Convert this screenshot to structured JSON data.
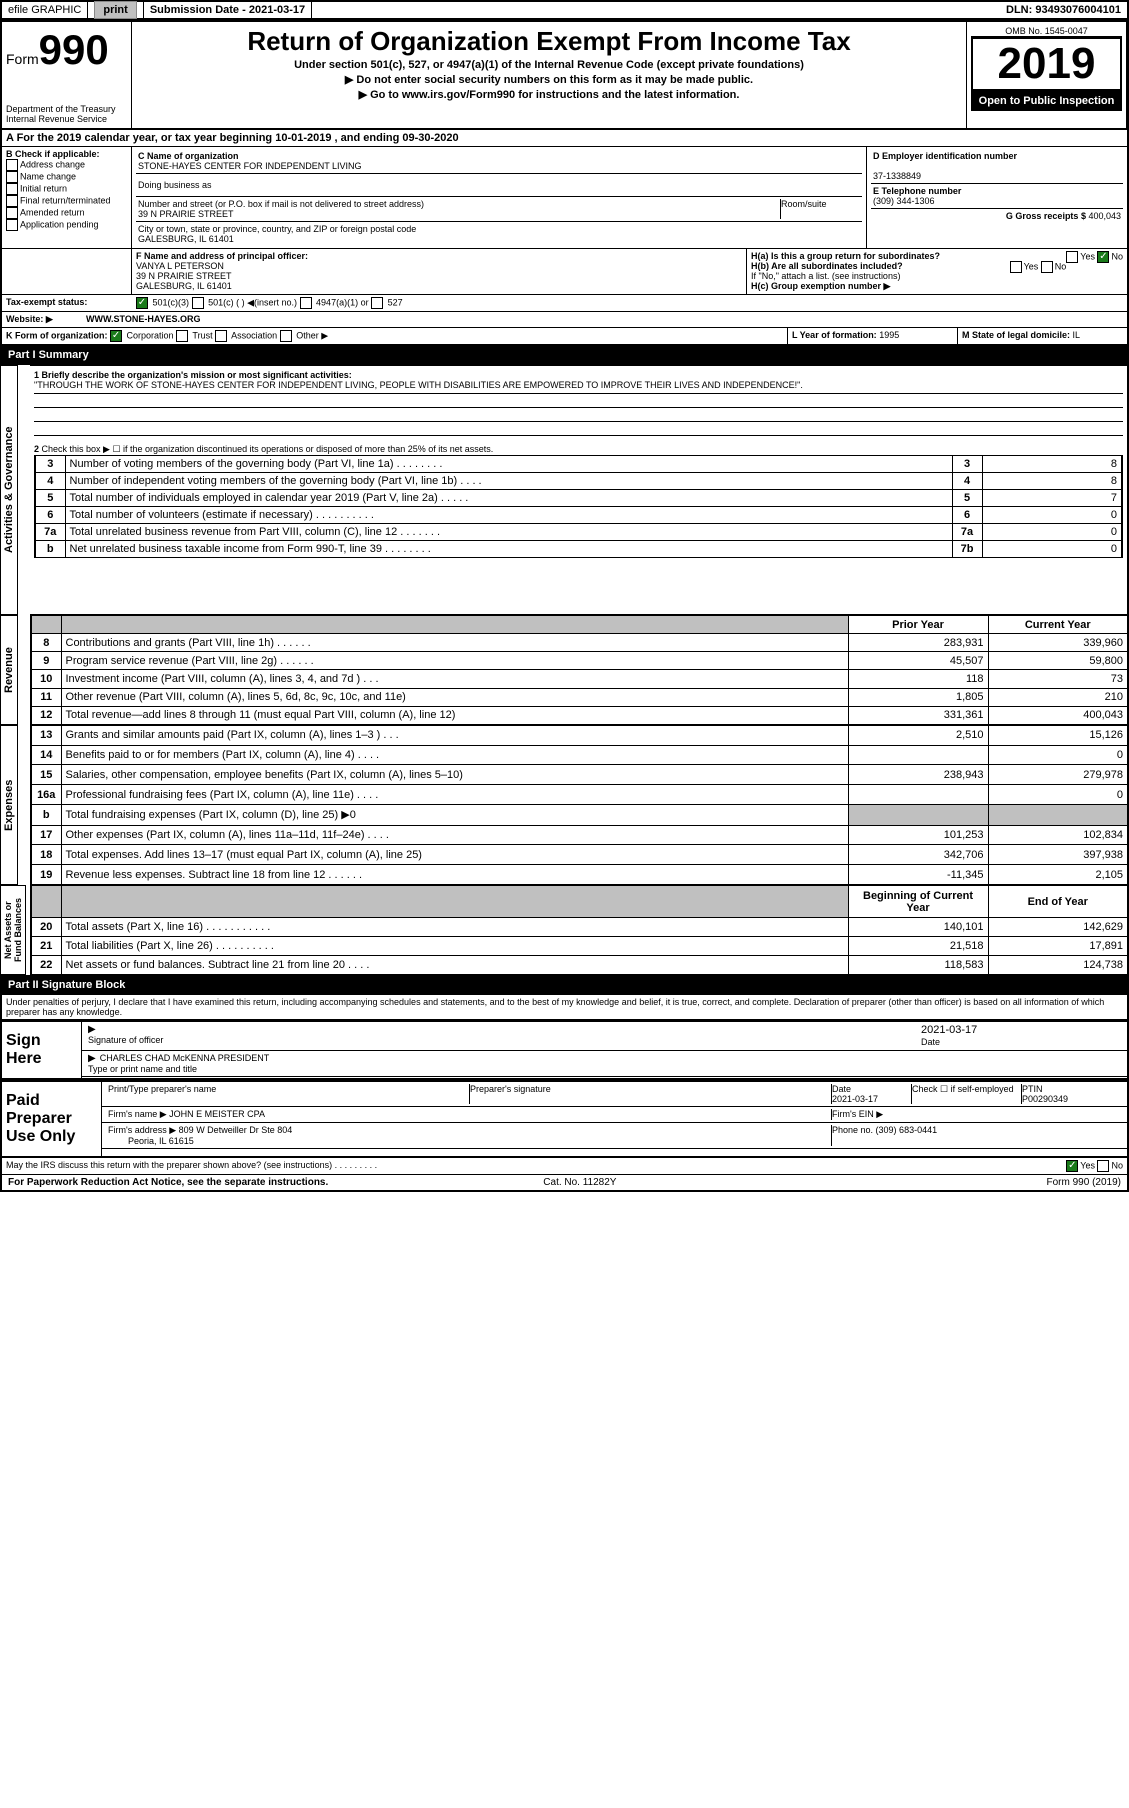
{
  "topbar": {
    "efile": "efile GRAPHIC",
    "print": "print",
    "subdate_lbl": "Submission Date - ",
    "subdate": "2021-03-17",
    "dln": "DLN: 93493076004101"
  },
  "header": {
    "form_word": "Form",
    "form_num": "990",
    "dept1": "Department of the Treasury",
    "dept2": "Internal Revenue Service",
    "title": "Return of Organization Exempt From Income Tax",
    "sub1": "Under section 501(c), 527, or 4947(a)(1) of the Internal Revenue Code (except private foundations)",
    "sub2": "▶ Do not enter social security numbers on this form as it may be made public.",
    "sub3": "▶ Go to www.irs.gov/Form990 for instructions and the latest information.",
    "omb_lbl": "OMB No. 1545-0047",
    "year": "2019",
    "opi": "Open to Public Inspection"
  },
  "lineA": {
    "text1": "A For the 2019 calendar year, or tax year beginning ",
    "d1": "10-01-2019",
    "text2": " , and ending ",
    "d2": "09-30-2020"
  },
  "boxB": {
    "title": "B Check if applicable:",
    "items": [
      "Address change",
      "Name change",
      "Initial return",
      "Final return/terminated",
      "Amended return",
      "Application pending"
    ]
  },
  "boxC": {
    "name_lbl": "C Name of organization",
    "name": "STONE-HAYES CENTER FOR INDEPENDENT LIVING",
    "dba_lbl": "Doing business as",
    "addr_lbl": "Number and street (or P.O. box if mail is not delivered to street address)",
    "room_lbl": "Room/suite",
    "addr": "39 N PRAIRIE STREET",
    "city_lbl": "City or town, state or province, country, and ZIP or foreign postal code",
    "city": "GALESBURG, IL  61401"
  },
  "boxD": {
    "lbl": "D Employer identification number",
    "val": "37-1338849"
  },
  "boxE": {
    "lbl": "E Telephone number",
    "val": "(309) 344-1306"
  },
  "boxG": {
    "lbl": "G Gross receipts $ ",
    "val": "400,043"
  },
  "boxF": {
    "lbl": "F Name and address of principal officer:",
    "name": "VANYA L PETERSON",
    "addr1": "39 N PRAIRIE STREET",
    "addr2": "GALESBURG, IL  61401"
  },
  "boxH": {
    "a": "H(a)  Is this a group return for subordinates?",
    "b": "H(b)  Are all subordinates included?",
    "note": "If \"No,\" attach a list. (see instructions)",
    "c": "H(c)  Group exemption number ▶",
    "yes": "Yes",
    "no": "No"
  },
  "taxexempt": {
    "lbl": "Tax-exempt status:",
    "o1": "501(c)(3)",
    "o2": "501(c) (  ) ◀(insert no.)",
    "o3": "4947(a)(1) or",
    "o4": "527"
  },
  "website": {
    "lbl": "Website: ▶",
    "val": "WWW.STONE-HAYES.ORG"
  },
  "lineK": {
    "lbl": "K Form of organization:",
    "o1": "Corporation",
    "o2": "Trust",
    "o3": "Association",
    "o4": "Other ▶"
  },
  "lineL": {
    "lbl": "L Year of formation: ",
    "val": "1995"
  },
  "lineM": {
    "lbl": "M State of legal domicile: ",
    "val": "IL"
  },
  "part1": {
    "hdr": "Part I    Summary",
    "q1": "1 Briefly describe the organization's mission or most significant activities:",
    "mission": "\"THROUGH THE WORK OF STONE-HAYES CENTER FOR INDEPENDENT LIVING, PEOPLE WITH DISABILITIES ARE EMPOWERED TO IMPROVE THEIR LIVES AND INDEPENDENCE!\".",
    "q2": "Check this box ▶ ☐ if the organization discontinued its operations or disposed of more than 25% of its net assets.",
    "side_a": "Activities & Governance",
    "side_r": "Revenue",
    "side_e": "Expenses",
    "side_n": "Net Assets or Fund Balances",
    "gov": [
      {
        "n": "3",
        "t": "Number of voting members of the governing body (Part VI, line 1a)  .  .  .  .  .  .  .  .",
        "b": "3",
        "v": "8"
      },
      {
        "n": "4",
        "t": "Number of independent voting members of the governing body (Part VI, line 1b)  .  .  .  .",
        "b": "4",
        "v": "8"
      },
      {
        "n": "5",
        "t": "Total number of individuals employed in calendar year 2019 (Part V, line 2a)  .  .  .  .  .",
        "b": "5",
        "v": "7"
      },
      {
        "n": "6",
        "t": "Total number of volunteers (estimate if necessary)  .  .  .  .  .  .  .  .  .  .",
        "b": "6",
        "v": "0"
      },
      {
        "n": "7a",
        "t": "Total unrelated business revenue from Part VIII, column (C), line 12  .  .  .  .  .  .  .",
        "b": "7a",
        "v": "0"
      },
      {
        "n": "b",
        "t": "Net unrelated business taxable income from Form 990-T, line 39  .  .  .  .  .  .  .  .",
        "b": "7b",
        "v": "0"
      }
    ],
    "hdr_py": "Prior Year",
    "hdr_cy": "Current Year",
    "rev": [
      {
        "n": "8",
        "t": "Contributions and grants (Part VIII, line 1h)  .  .  .  .  .  .",
        "p": "283,931",
        "c": "339,960"
      },
      {
        "n": "9",
        "t": "Program service revenue (Part VIII, line 2g)  .  .  .  .  .  .",
        "p": "45,507",
        "c": "59,800"
      },
      {
        "n": "10",
        "t": "Investment income (Part VIII, column (A), lines 3, 4, and 7d )  .  .  .",
        "p": "118",
        "c": "73"
      },
      {
        "n": "11",
        "t": "Other revenue (Part VIII, column (A), lines 5, 6d, 8c, 9c, 10c, and 11e)",
        "p": "1,805",
        "c": "210"
      },
      {
        "n": "12",
        "t": "Total revenue—add lines 8 through 11 (must equal Part VIII, column (A), line 12)",
        "p": "331,361",
        "c": "400,043"
      }
    ],
    "exp": [
      {
        "n": "13",
        "t": "Grants and similar amounts paid (Part IX, column (A), lines 1–3 )  .  .  .",
        "p": "2,510",
        "c": "15,126"
      },
      {
        "n": "14",
        "t": "Benefits paid to or for members (Part IX, column (A), line 4)  .  .  .  .",
        "p": "",
        "c": "0"
      },
      {
        "n": "15",
        "t": "Salaries, other compensation, employee benefits (Part IX, column (A), lines 5–10)",
        "p": "238,943",
        "c": "279,978"
      },
      {
        "n": "16a",
        "t": "Professional fundraising fees (Part IX, column (A), line 11e)  .  .  .  .",
        "p": "",
        "c": "0"
      },
      {
        "n": "b",
        "t": "Total fundraising expenses (Part IX, column (D), line 25) ▶0",
        "p": "",
        "c": "",
        "shade": true
      },
      {
        "n": "17",
        "t": "Other expenses (Part IX, column (A), lines 11a–11d, 11f–24e)  .  .  .  .",
        "p": "101,253",
        "c": "102,834"
      },
      {
        "n": "18",
        "t": "Total expenses. Add lines 13–17 (must equal Part IX, column (A), line 25)",
        "p": "342,706",
        "c": "397,938"
      },
      {
        "n": "19",
        "t": "Revenue less expenses. Subtract line 18 from line 12  .  .  .  .  .  .",
        "p": "-11,345",
        "c": "2,105"
      }
    ],
    "hdr_bcy": "Beginning of Current Year",
    "hdr_ey": "End of Year",
    "net": [
      {
        "n": "20",
        "t": "Total assets (Part X, line 16)  .  .  .  .  .  .  .  .  .  .  .",
        "p": "140,101",
        "c": "142,629"
      },
      {
        "n": "21",
        "t": "Total liabilities (Part X, line 26)  .  .  .  .  .  .  .  .  .  .",
        "p": "21,518",
        "c": "17,891"
      },
      {
        "n": "22",
        "t": "Net assets or fund balances. Subtract line 21 from line 20  .  .  .  .",
        "p": "118,583",
        "c": "124,738"
      }
    ]
  },
  "part2": {
    "hdr": "Part II    Signature Block",
    "decl": "Under penalties of perjury, I declare that I have examined this return, including accompanying schedules and statements, and to the best of my knowledge and belief, it is true, correct, and complete. Declaration of preparer (other than officer) is based on all information of which preparer has any knowledge.",
    "sign_here": "Sign Here",
    "sig_lbl": "Signature of officer",
    "date_lbl": "Date",
    "date": "2021-03-17",
    "name": "CHARLES CHAD McKENNA  PRESIDENT",
    "name_lbl": "Type or print name and title",
    "paid": "Paid Preparer Use Only",
    "pt_name_lbl": "Print/Type preparer's name",
    "pt_sig_lbl": "Preparer's signature",
    "pt_date_lbl": "Date",
    "pt_date": "2021-03-17",
    "pt_check": "Check ☐ if self-employed",
    "ptin_lbl": "PTIN",
    "ptin": "P00290349",
    "firm_lbl": "Firm's name   ▶",
    "firm": "JOHN E MEISTER CPA",
    "ein_lbl": "Firm's EIN ▶",
    "faddr_lbl": "Firm's address ▶",
    "faddr1": "809 W Detweiller Dr Ste 804",
    "faddr2": "Peoria, IL  61615",
    "phone_lbl": "Phone no. ",
    "phone": "(309) 683-0441",
    "discuss": "May the IRS discuss this return with the preparer shown above? (see instructions)  .  .  .  .  .  .  .  .  .",
    "yes": "Yes",
    "no": "No"
  },
  "footer": {
    "pra": "For Paperwork Reduction Act Notice, see the separate instructions.",
    "cat": "Cat. No. 11282Y",
    "form": "Form 990 (2019)"
  }
}
